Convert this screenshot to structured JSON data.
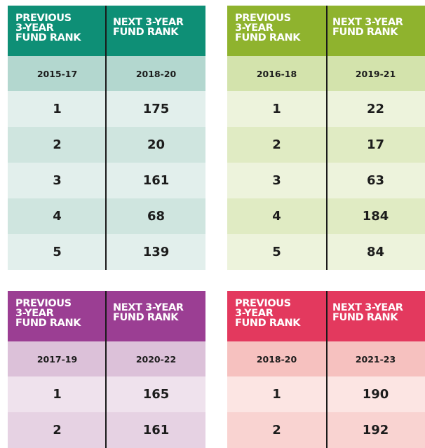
{
  "tables": [
    {
      "header_left": "PREVIOUS\n3-YEAR\nFUND RANK",
      "header_right": "NEXT 3-YEAR\nFUND RANK",
      "period_left": "2015-17",
      "period_right": "2018-20",
      "header_color": "#0e8f76",
      "period_color": "#b3d7cf",
      "row_colors": [
        "#e2efec",
        "#cfe5df"
      ],
      "rows": [
        {
          "prev": "1",
          "next": "175"
        },
        {
          "prev": "2",
          "next": "20"
        },
        {
          "prev": "3",
          "next": "161"
        },
        {
          "prev": "4",
          "next": "68"
        },
        {
          "prev": "5",
          "next": "139"
        }
      ]
    },
    {
      "header_left": "PREVIOUS\n3-YEAR\nFUND RANK",
      "header_right": "NEXT 3-YEAR\nFUND RANK",
      "period_left": "2016-18",
      "period_right": "2019-21",
      "header_color": "#8fb32e",
      "period_color": "#d3e3ac",
      "row_colors": [
        "#edf3dc",
        "#e0ebc3"
      ],
      "rows": [
        {
          "prev": "1",
          "next": "22"
        },
        {
          "prev": "2",
          "next": "17"
        },
        {
          "prev": "3",
          "next": "63"
        },
        {
          "prev": "4",
          "next": "184"
        },
        {
          "prev": "5",
          "next": "84"
        }
      ]
    },
    {
      "header_left": "PREVIOUS\n3-YEAR\nFUND RANK",
      "header_right": "NEXT 3-YEAR\nFUND RANK",
      "period_left": "2017-19",
      "period_right": "2020-22",
      "header_color": "#9b3e93",
      "period_color": "#dcc1d9",
      "row_colors": [
        "#efe2ed",
        "#e6d2e3"
      ],
      "rows": [
        {
          "prev": "1",
          "next": "165"
        },
        {
          "prev": "2",
          "next": "161"
        }
      ]
    },
    {
      "header_left": "PREVIOUS\n3-YEAR\nFUND RANK",
      "header_right": "NEXT 3-YEAR\nFUND RANK",
      "period_left": "2018-20",
      "period_right": "2021-23",
      "header_color": "#e3395e",
      "period_color": "#f6c1bf",
      "row_colors": [
        "#fce5e3",
        "#f9d3d1"
      ],
      "rows": [
        {
          "prev": "1",
          "next": "190"
        },
        {
          "prev": "2",
          "next": "192"
        }
      ]
    }
  ]
}
